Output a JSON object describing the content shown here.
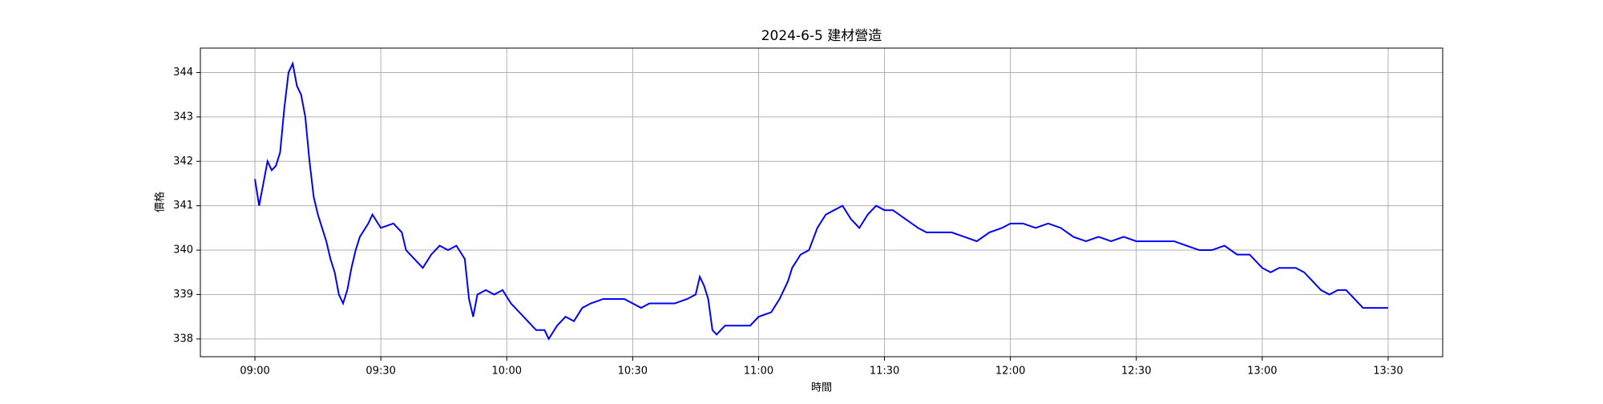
{
  "chart_data": {
    "type": "line",
    "title": "2024-6-5 建材營造",
    "x_label": "時間",
    "y_label": "價格",
    "xlim": [
      "08:47",
      "13:43"
    ],
    "ylim": [
      337.6,
      344.55
    ],
    "xticks": [
      "09:00",
      "09:30",
      "10:00",
      "10:30",
      "11:00",
      "11:30",
      "12:00",
      "12:30",
      "13:00",
      "13:30"
    ],
    "yticks": [
      338,
      339,
      340,
      341,
      342,
      343,
      344
    ],
    "grid": true,
    "x": [
      "09:00",
      "09:01",
      "09:02",
      "09:03",
      "09:04",
      "09:05",
      "09:06",
      "09:07",
      "09:08",
      "09:09",
      "09:10",
      "09:11",
      "09:12",
      "09:13",
      "09:14",
      "09:15",
      "09:16",
      "09:17",
      "09:18",
      "09:19",
      "09:20",
      "09:21",
      "09:22",
      "09:23",
      "09:24",
      "09:25",
      "09:27",
      "09:28",
      "09:30",
      "09:33",
      "09:35",
      "09:36",
      "09:38",
      "09:40",
      "09:42",
      "09:44",
      "09:46",
      "09:48",
      "09:50",
      "09:51",
      "09:52",
      "09:53",
      "09:55",
      "09:57",
      "09:59",
      "10:01",
      "10:03",
      "10:05",
      "10:07",
      "10:09",
      "10:10",
      "10:12",
      "10:14",
      "10:16",
      "10:18",
      "10:20",
      "10:23",
      "10:26",
      "10:28",
      "10:30",
      "10:32",
      "10:34",
      "10:37",
      "10:40",
      "10:43",
      "10:45",
      "10:46",
      "10:47",
      "10:48",
      "10:49",
      "10:50",
      "10:52",
      "10:55",
      "10:58",
      "11:00",
      "11:03",
      "11:05",
      "11:07",
      "11:08",
      "11:10",
      "11:12",
      "11:14",
      "11:16",
      "11:18",
      "11:20",
      "11:22",
      "11:24",
      "11:26",
      "11:28",
      "11:30",
      "11:32",
      "11:35",
      "11:38",
      "11:40",
      "11:43",
      "11:46",
      "11:49",
      "11:52",
      "11:55",
      "11:58",
      "12:00",
      "12:03",
      "12:06",
      "12:09",
      "12:12",
      "12:15",
      "12:18",
      "12:21",
      "12:24",
      "12:27",
      "12:30",
      "12:33",
      "12:36",
      "12:39",
      "12:42",
      "12:45",
      "12:48",
      "12:51",
      "12:54",
      "12:57",
      "13:00",
      "13:02",
      "13:04",
      "13:06",
      "13:08",
      "13:10",
      "13:12",
      "13:14",
      "13:16",
      "13:18",
      "13:20",
      "13:22",
      "13:24",
      "13:30"
    ],
    "series": [
      {
        "name": "建材營造",
        "color": "#0000ff",
        "values": [
          341.6,
          341.0,
          341.5,
          342.0,
          341.8,
          341.9,
          342.2,
          343.2,
          344.0,
          344.2,
          343.7,
          343.5,
          343.0,
          342.0,
          341.2,
          340.8,
          340.5,
          340.2,
          339.8,
          339.5,
          339.0,
          338.8,
          339.1,
          339.6,
          340.0,
          340.3,
          340.6,
          340.8,
          340.5,
          340.6,
          340.4,
          340.0,
          339.8,
          339.6,
          339.9,
          340.1,
          340.0,
          340.1,
          339.8,
          338.9,
          338.5,
          339.0,
          339.1,
          339.0,
          339.1,
          338.8,
          338.6,
          338.4,
          338.2,
          338.2,
          338.0,
          338.3,
          338.5,
          338.4,
          338.7,
          338.8,
          338.9,
          338.9,
          338.9,
          338.8,
          338.7,
          338.8,
          338.8,
          338.8,
          338.9,
          339.0,
          339.4,
          339.2,
          338.9,
          338.2,
          338.1,
          338.3,
          338.3,
          338.3,
          338.5,
          338.6,
          338.9,
          339.3,
          339.6,
          339.9,
          340.0,
          340.5,
          340.8,
          340.9,
          341.0,
          340.7,
          340.5,
          340.8,
          341.0,
          340.9,
          340.9,
          340.7,
          340.5,
          340.4,
          340.4,
          340.4,
          340.3,
          340.2,
          340.4,
          340.5,
          340.6,
          340.6,
          340.5,
          340.6,
          340.5,
          340.3,
          340.2,
          340.3,
          340.2,
          340.3,
          340.2,
          340.2,
          340.2,
          340.2,
          340.1,
          340.0,
          340.0,
          340.1,
          339.9,
          339.9,
          339.6,
          339.5,
          339.6,
          339.6,
          339.6,
          339.5,
          339.3,
          339.1,
          339.0,
          339.1,
          339.1,
          338.9,
          338.7,
          338.7
        ]
      }
    ]
  }
}
